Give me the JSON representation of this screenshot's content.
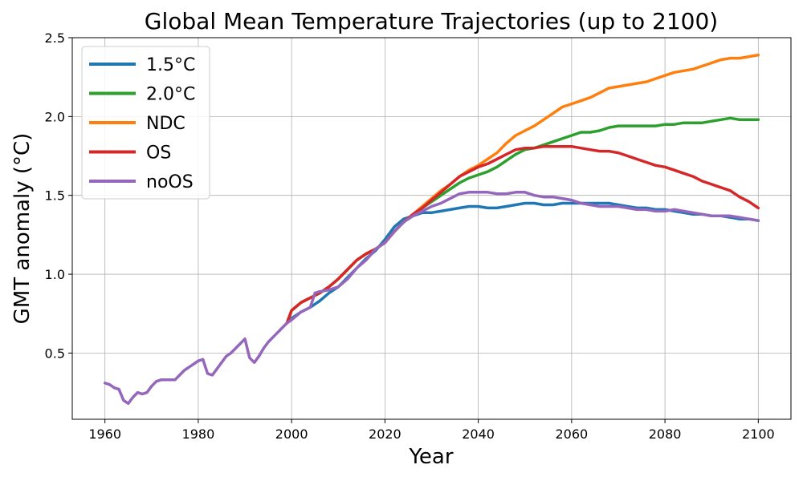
{
  "chart_data": {
    "type": "line",
    "title": "Global Mean Temperature Trajectories (up to 2100)",
    "xlabel": "Year",
    "ylabel": "GMT anomaly (°C)",
    "xlim": [
      1953,
      2107
    ],
    "ylim": [
      0.08,
      2.5
    ],
    "xticks": [
      1960,
      1980,
      2000,
      2020,
      2040,
      2060,
      2080,
      2100
    ],
    "yticks": [
      0.5,
      1.0,
      1.5,
      2.0,
      2.5
    ],
    "x_tick_labels": [
      "1960",
      "1980",
      "2000",
      "2020",
      "2040",
      "2060",
      "2080",
      "2100"
    ],
    "y_tick_labels": [
      "0.5",
      "1.0",
      "1.5",
      "2.0",
      "2.5"
    ],
    "grid": true,
    "legend_position": "top-left",
    "historical": {
      "x": [
        1960,
        1961,
        1962,
        1963,
        1964,
        1965,
        1966,
        1967,
        1968,
        1969,
        1970,
        1971,
        1972,
        1973,
        1974,
        1975,
        1976,
        1977,
        1978,
        1979,
        1980,
        1981,
        1982,
        1983,
        1984,
        1985,
        1986,
        1987,
        1988,
        1989,
        1990,
        1991,
        1992,
        1993,
        1994,
        1995,
        1996,
        1997,
        1998,
        1999
      ],
      "y": [
        0.31,
        0.3,
        0.28,
        0.27,
        0.2,
        0.18,
        0.22,
        0.25,
        0.24,
        0.25,
        0.29,
        0.32,
        0.33,
        0.33,
        0.33,
        0.33,
        0.36,
        0.39,
        0.41,
        0.43,
        0.45,
        0.46,
        0.37,
        0.36,
        0.4,
        0.44,
        0.48,
        0.5,
        0.53,
        0.56,
        0.59,
        0.47,
        0.44,
        0.48,
        0.53,
        0.57,
        0.6,
        0.63,
        0.66,
        0.69
      ]
    },
    "series": [
      {
        "name": "1.5°C",
        "color": "#1f77b4",
        "x": [
          2000,
          2002,
          2004,
          2006,
          2008,
          2010,
          2012,
          2014,
          2016,
          2018,
          2020,
          2022,
          2024,
          2026,
          2028,
          2030,
          2032,
          2034,
          2036,
          2038,
          2040,
          2042,
          2044,
          2046,
          2048,
          2050,
          2052,
          2054,
          2056,
          2058,
          2060,
          2062,
          2064,
          2066,
          2068,
          2070,
          2072,
          2074,
          2076,
          2078,
          2080,
          2082,
          2084,
          2086,
          2088,
          2090,
          2092,
          2094,
          2096,
          2098,
          2100
        ],
        "y": [
          0.72,
          0.76,
          0.79,
          0.83,
          0.88,
          0.92,
          0.98,
          1.04,
          1.1,
          1.15,
          1.22,
          1.3,
          1.35,
          1.37,
          1.39,
          1.39,
          1.4,
          1.41,
          1.42,
          1.43,
          1.43,
          1.42,
          1.42,
          1.43,
          1.44,
          1.45,
          1.45,
          1.44,
          1.44,
          1.45,
          1.45,
          1.45,
          1.45,
          1.45,
          1.45,
          1.44,
          1.43,
          1.42,
          1.42,
          1.41,
          1.41,
          1.4,
          1.39,
          1.38,
          1.38,
          1.37,
          1.37,
          1.36,
          1.35,
          1.35,
          1.34
        ]
      },
      {
        "name": "2.0°C",
        "color": "#2ca02c",
        "x": [
          2000,
          2002,
          2004,
          2006,
          2008,
          2010,
          2012,
          2014,
          2016,
          2018,
          2020,
          2022,
          2024,
          2026,
          2028,
          2030,
          2032,
          2034,
          2036,
          2038,
          2040,
          2042,
          2044,
          2046,
          2048,
          2050,
          2052,
          2054,
          2056,
          2058,
          2060,
          2062,
          2064,
          2066,
          2068,
          2070,
          2072,
          2074,
          2076,
          2078,
          2080,
          2082,
          2084,
          2086,
          2088,
          2090,
          2092,
          2094,
          2096,
          2098,
          2100
        ],
        "y": [
          0.77,
          0.82,
          0.85,
          0.88,
          0.92,
          0.97,
          1.03,
          1.09,
          1.13,
          1.16,
          1.2,
          1.27,
          1.33,
          1.38,
          1.42,
          1.46,
          1.5,
          1.54,
          1.58,
          1.61,
          1.63,
          1.65,
          1.68,
          1.72,
          1.76,
          1.79,
          1.8,
          1.82,
          1.84,
          1.86,
          1.88,
          1.9,
          1.9,
          1.91,
          1.93,
          1.94,
          1.94,
          1.94,
          1.94,
          1.94,
          1.95,
          1.95,
          1.96,
          1.96,
          1.96,
          1.97,
          1.98,
          1.99,
          1.98,
          1.98,
          1.98
        ]
      },
      {
        "name": "NDC",
        "color": "#ff7f0e",
        "x": [
          2000,
          2002,
          2004,
          2006,
          2008,
          2010,
          2012,
          2014,
          2016,
          2018,
          2020,
          2022,
          2024,
          2026,
          2028,
          2030,
          2032,
          2034,
          2036,
          2038,
          2040,
          2042,
          2044,
          2046,
          2048,
          2050,
          2052,
          2054,
          2056,
          2058,
          2060,
          2062,
          2064,
          2066,
          2068,
          2070,
          2072,
          2074,
          2076,
          2078,
          2080,
          2082,
          2084,
          2086,
          2088,
          2090,
          2092,
          2094,
          2096,
          2098,
          2100
        ],
        "y": [
          0.77,
          0.82,
          0.85,
          0.88,
          0.92,
          0.97,
          1.03,
          1.09,
          1.13,
          1.16,
          1.2,
          1.27,
          1.33,
          1.38,
          1.43,
          1.48,
          1.53,
          1.57,
          1.62,
          1.66,
          1.69,
          1.73,
          1.77,
          1.83,
          1.88,
          1.91,
          1.94,
          1.98,
          2.02,
          2.06,
          2.08,
          2.1,
          2.12,
          2.15,
          2.18,
          2.19,
          2.2,
          2.21,
          2.22,
          2.24,
          2.26,
          2.28,
          2.29,
          2.3,
          2.32,
          2.34,
          2.36,
          2.37,
          2.37,
          2.38,
          2.39
        ]
      },
      {
        "name": "OS",
        "color": "#d62728",
        "x": [
          2000,
          2002,
          2004,
          2006,
          2008,
          2010,
          2012,
          2014,
          2016,
          2018,
          2020,
          2022,
          2024,
          2026,
          2028,
          2030,
          2032,
          2034,
          2036,
          2038,
          2040,
          2042,
          2044,
          2046,
          2048,
          2050,
          2052,
          2054,
          2056,
          2058,
          2060,
          2062,
          2064,
          2066,
          2068,
          2070,
          2072,
          2074,
          2076,
          2078,
          2080,
          2082,
          2084,
          2086,
          2088,
          2090,
          2092,
          2094,
          2096,
          2098,
          2100
        ],
        "y": [
          0.77,
          0.82,
          0.85,
          0.88,
          0.92,
          0.97,
          1.03,
          1.09,
          1.13,
          1.16,
          1.2,
          1.27,
          1.33,
          1.38,
          1.42,
          1.47,
          1.52,
          1.57,
          1.62,
          1.65,
          1.68,
          1.7,
          1.73,
          1.76,
          1.79,
          1.8,
          1.8,
          1.81,
          1.81,
          1.81,
          1.81,
          1.8,
          1.79,
          1.78,
          1.78,
          1.77,
          1.75,
          1.73,
          1.71,
          1.69,
          1.68,
          1.66,
          1.64,
          1.62,
          1.59,
          1.57,
          1.55,
          1.53,
          1.49,
          1.46,
          1.42
        ]
      },
      {
        "name": "noOS",
        "color": "#9467bd",
        "x": [
          2000,
          2002,
          2004,
          2005,
          2006,
          2008,
          2010,
          2012,
          2014,
          2016,
          2018,
          2020,
          2022,
          2024,
          2026,
          2028,
          2030,
          2032,
          2034,
          2036,
          2038,
          2040,
          2042,
          2044,
          2046,
          2048,
          2050,
          2052,
          2054,
          2056,
          2058,
          2060,
          2062,
          2064,
          2066,
          2068,
          2070,
          2072,
          2074,
          2076,
          2078,
          2080,
          2082,
          2084,
          2086,
          2088,
          2090,
          2092,
          2094,
          2096,
          2098,
          2100
        ],
        "y": [
          0.71,
          0.76,
          0.79,
          0.88,
          0.89,
          0.9,
          0.92,
          0.97,
          1.04,
          1.09,
          1.16,
          1.2,
          1.27,
          1.33,
          1.37,
          1.4,
          1.43,
          1.45,
          1.48,
          1.51,
          1.52,
          1.52,
          1.52,
          1.51,
          1.51,
          1.52,
          1.52,
          1.5,
          1.49,
          1.49,
          1.48,
          1.47,
          1.45,
          1.44,
          1.43,
          1.43,
          1.43,
          1.42,
          1.41,
          1.41,
          1.4,
          1.4,
          1.41,
          1.4,
          1.39,
          1.38,
          1.37,
          1.37,
          1.37,
          1.36,
          1.35,
          1.34
        ]
      }
    ]
  }
}
